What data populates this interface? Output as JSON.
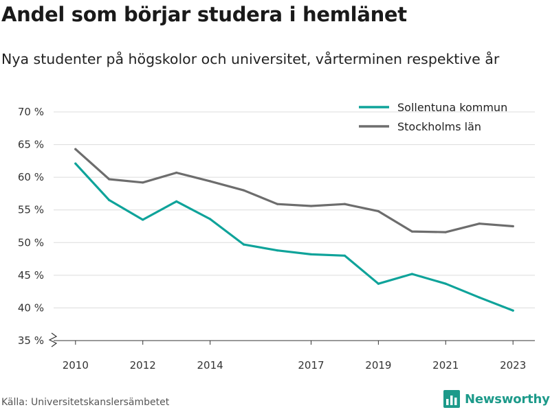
{
  "title": "Andel som börjar studera i hemlänet",
  "subtitle": "Nya studenter på högskolor och universitet, vårterminen respektive år",
  "source": "Källa: Universitetskanslersämbetet",
  "brand": {
    "name": "Newsworthy",
    "icon": "bar-chart-logo-icon",
    "color": "#1d9a8a"
  },
  "chart_data": {
    "type": "line",
    "title": "Andel som börjar studera i hemlänet",
    "subtitle": "Nya studenter på högskolor och universitet, vårterminen respektive år",
    "xlabel": "",
    "ylabel": "",
    "x": [
      2010,
      2011,
      2012,
      2013,
      2014,
      2015,
      2016,
      2017,
      2018,
      2019,
      2020,
      2021,
      2022,
      2023
    ],
    "x_tick_values": [
      2010,
      2012,
      2014,
      2017,
      2019,
      2021,
      2023
    ],
    "x_tick_labels": [
      "2010",
      "2012",
      "2014",
      "2017",
      "2019",
      "2021",
      "2023"
    ],
    "xlim": [
      2009.35,
      2023.65
    ],
    "y_tick_values": [
      35,
      40,
      45,
      50,
      55,
      60,
      65,
      70
    ],
    "y_tick_labels": [
      "35 %",
      "40 %",
      "45 %",
      "50 %",
      "55 %",
      "60 %",
      "65 %",
      "70 %"
    ],
    "ylim": [
      35,
      70
    ],
    "y_axis_break": true,
    "grid": "horizontal",
    "legend_position": "top-right",
    "series": [
      {
        "name": "Sollentuna kommun",
        "color": "#0fa39a",
        "values": [
          62.1,
          56.5,
          53.5,
          56.3,
          53.6,
          49.7,
          48.8,
          48.2,
          48.0,
          43.7,
          45.2,
          43.7,
          41.6,
          39.6
        ]
      },
      {
        "name": "Stockholms län",
        "color": "#6d6d6d",
        "values": [
          64.3,
          59.7,
          59.2,
          60.7,
          59.4,
          58.0,
          55.9,
          55.6,
          55.9,
          54.8,
          51.7,
          51.6,
          52.9,
          52.5
        ]
      }
    ]
  }
}
